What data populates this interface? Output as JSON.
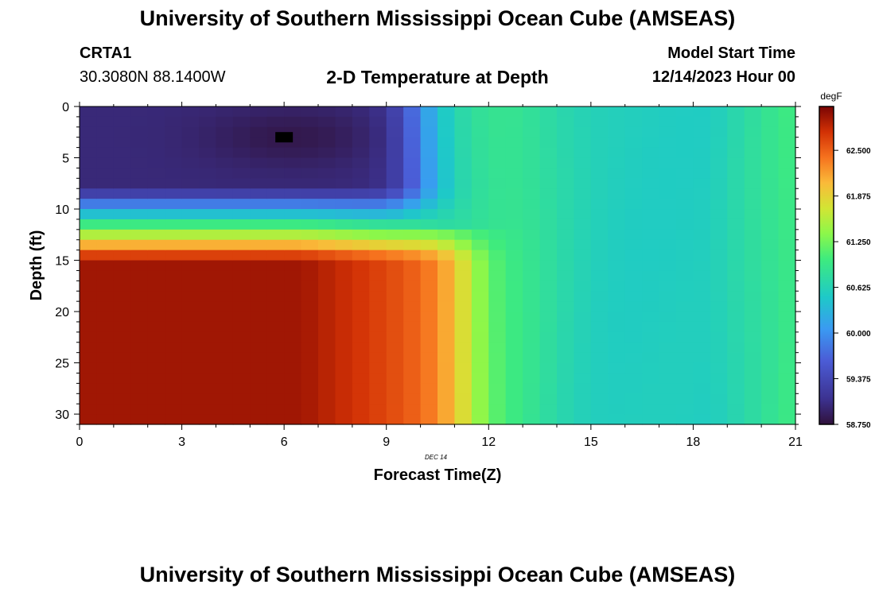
{
  "header": {
    "title": "University of Southern Mississippi Ocean Cube (AMSEAS)",
    "station": "CRTA1",
    "coords": "30.3080N  88.1400W",
    "chart_title": "2-D Temperature at Depth",
    "model_start_label": "Model Start Time",
    "model_start_value": "12/14/2023 Hour 00"
  },
  "footer": {
    "title": "University of Southern Mississippi Ocean Cube (AMSEAS)"
  },
  "chart_data": {
    "type": "heatmap",
    "title": "2-D Temperature at Depth",
    "xlabel": "Forecast Time(Z)",
    "ylabel": "Depth (ft)",
    "x_date_label": "DEC 14",
    "xlim": [
      0,
      21
    ],
    "ylim": [
      0,
      31
    ],
    "x_ticks": [
      0,
      3,
      6,
      9,
      12,
      15,
      18,
      21
    ],
    "y_ticks": [
      0,
      5,
      10,
      15,
      20,
      25,
      30
    ],
    "colorbar": {
      "unit": "degF",
      "min": 58.75,
      "max": 63.1,
      "ticks": [
        "58.750",
        "59.375",
        "60.000",
        "60.625",
        "61.250",
        "61.875",
        "62.500"
      ]
    },
    "field_description": {
      "surface_cold_layer_degF": 59.0,
      "surface_cold_layer_depth_ft": [
        0,
        9
      ],
      "deep_warm_layer_degF": 62.9,
      "deep_warm_layer_depth_ft": [
        15,
        31
      ],
      "well_mixed_after_hour": 11.5,
      "mixed_temperature_degF": [
        60.5,
        61.2
      ]
    },
    "marker": {
      "time": 6,
      "depth_ft": 3
    }
  }
}
